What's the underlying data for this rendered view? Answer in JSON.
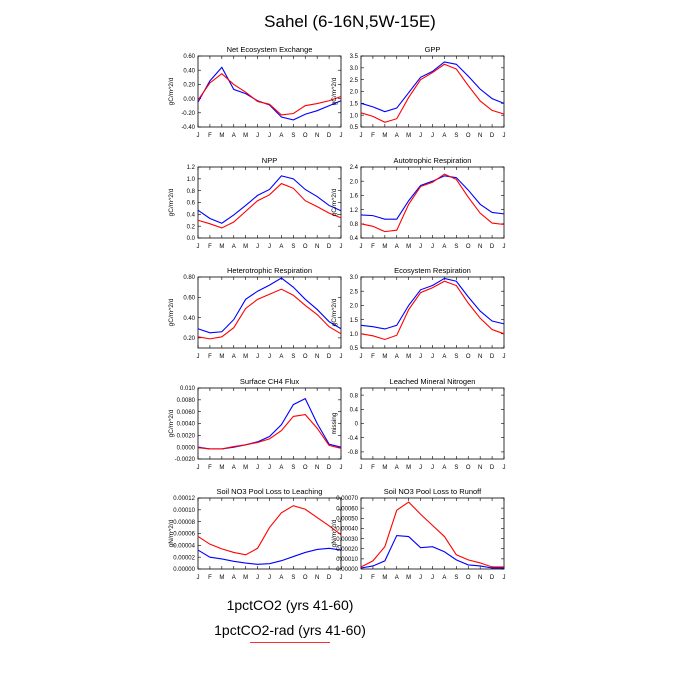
{
  "title": "Sahel (6-16N,5W-15E)",
  "colors": {
    "series1": "#0000ff",
    "series2": "#ff0000"
  },
  "legend": {
    "entries": [
      "1pctCO2 (yrs 41-60)",
      "1pctCO2-rad (yrs 41-60)"
    ]
  },
  "chart_data": [
    {
      "type": "line",
      "title": "Net Ecosystem Exchange",
      "ylabel": "gC/m^2/d",
      "categories": [
        "J",
        "F",
        "M",
        "A",
        "M",
        "J",
        "J",
        "A",
        "S",
        "O",
        "N",
        "D",
        "J"
      ],
      "ylim": [
        -0.4,
        0.6
      ],
      "yticks": [
        -0.4,
        -0.2,
        0.0,
        0.2,
        0.4,
        0.6
      ],
      "ytick_labels": [
        "-0.40",
        "-0.20",
        "0.00",
        "0.20",
        "0.40",
        "0.60"
      ],
      "series": [
        {
          "values": [
            -0.05,
            0.25,
            0.44,
            0.13,
            0.07,
            -0.03,
            -0.09,
            -0.26,
            -0.3,
            -0.22,
            -0.17,
            -0.1,
            -0.03
          ]
        },
        {
          "values": [
            -0.02,
            0.22,
            0.35,
            0.2,
            0.09,
            -0.04,
            -0.08,
            -0.23,
            -0.21,
            -0.1,
            -0.07,
            -0.03,
            0.03
          ]
        }
      ]
    },
    {
      "type": "line",
      "title": "GPP",
      "ylabel": "gC/m^2/d",
      "categories": [
        "J",
        "F",
        "M",
        "A",
        "M",
        "J",
        "J",
        "A",
        "S",
        "O",
        "N",
        "D",
        "J"
      ],
      "ylim": [
        0.5,
        3.5
      ],
      "yticks": [
        0.5,
        1.0,
        1.5,
        2.0,
        2.5,
        3.0,
        3.5
      ],
      "ytick_labels": [
        "0.5",
        "1.0",
        "1.5",
        "2.0",
        "2.5",
        "3.0",
        "3.5"
      ],
      "series": [
        {
          "values": [
            1.5,
            1.35,
            1.15,
            1.3,
            1.95,
            2.6,
            2.85,
            3.25,
            3.15,
            2.65,
            2.1,
            1.7,
            1.5
          ]
        },
        {
          "values": [
            1.1,
            0.95,
            0.7,
            0.85,
            1.75,
            2.5,
            2.8,
            3.15,
            2.95,
            2.25,
            1.6,
            1.2,
            1.05
          ]
        }
      ]
    },
    {
      "type": "line",
      "title": "NPP",
      "ylabel": "gC/m^2/d",
      "categories": [
        "J",
        "F",
        "M",
        "A",
        "M",
        "J",
        "J",
        "A",
        "S",
        "O",
        "N",
        "D",
        "J"
      ],
      "ylim": [
        0.0,
        1.2
      ],
      "yticks": [
        0.0,
        0.2,
        0.4,
        0.6,
        0.8,
        1.0,
        1.2
      ],
      "ytick_labels": [
        "0.0",
        "0.2",
        "0.4",
        "0.6",
        "0.8",
        "1.0",
        "1.2"
      ],
      "series": [
        {
          "values": [
            0.47,
            0.33,
            0.25,
            0.39,
            0.55,
            0.72,
            0.82,
            1.05,
            1.0,
            0.82,
            0.7,
            0.55,
            0.46
          ]
        },
        {
          "values": [
            0.3,
            0.24,
            0.17,
            0.27,
            0.45,
            0.63,
            0.73,
            0.92,
            0.84,
            0.63,
            0.53,
            0.42,
            0.34
          ]
        }
      ]
    },
    {
      "type": "line",
      "title": "Autotrophic Respiration",
      "ylabel": "gC/m^2/d",
      "categories": [
        "J",
        "F",
        "M",
        "A",
        "M",
        "J",
        "J",
        "A",
        "S",
        "O",
        "N",
        "D",
        "J"
      ],
      "ylim": [
        0.4,
        2.4
      ],
      "yticks": [
        0.4,
        0.8,
        1.2,
        1.6,
        2.0,
        2.4
      ],
      "ytick_labels": [
        "0.4",
        "0.8",
        "1.2",
        "1.6",
        "2.0",
        "2.4"
      ],
      "series": [
        {
          "values": [
            1.05,
            1.03,
            0.93,
            0.93,
            1.45,
            1.88,
            2.0,
            2.15,
            2.1,
            1.75,
            1.35,
            1.12,
            1.08
          ]
        },
        {
          "values": [
            0.8,
            0.73,
            0.58,
            0.62,
            1.35,
            1.85,
            1.97,
            2.2,
            2.05,
            1.55,
            1.1,
            0.82,
            0.78
          ]
        }
      ]
    },
    {
      "type": "line",
      "title": "Heterotrophic Respiration",
      "ylabel": "gC/m^2/d",
      "categories": [
        "J",
        "F",
        "M",
        "A",
        "M",
        "J",
        "J",
        "A",
        "S",
        "O",
        "N",
        "D",
        "J"
      ],
      "ylim": [
        0.1,
        0.8
      ],
      "yticks": [
        0.2,
        0.4,
        0.6,
        0.8
      ],
      "ytick_labels": [
        "0.20",
        "0.40",
        "0.60",
        "0.80"
      ],
      "series": [
        {
          "values": [
            0.29,
            0.25,
            0.26,
            0.38,
            0.58,
            0.66,
            0.72,
            0.79,
            0.7,
            0.58,
            0.48,
            0.36,
            0.29
          ]
        },
        {
          "values": [
            0.21,
            0.19,
            0.21,
            0.3,
            0.49,
            0.58,
            0.63,
            0.68,
            0.62,
            0.52,
            0.43,
            0.31,
            0.24
          ]
        }
      ]
    },
    {
      "type": "line",
      "title": "Ecosystem Respiration",
      "ylabel": "gC/m^2/d",
      "categories": [
        "J",
        "F",
        "M",
        "A",
        "M",
        "J",
        "J",
        "A",
        "S",
        "O",
        "N",
        "D",
        "J"
      ],
      "ylim": [
        0.5,
        3.0
      ],
      "yticks": [
        0.5,
        1.0,
        1.5,
        2.0,
        2.5,
        3.0
      ],
      "ytick_labels": [
        "0.5",
        "1.0",
        "1.5",
        "2.0",
        "2.5",
        "3.0"
      ],
      "series": [
        {
          "values": [
            1.3,
            1.25,
            1.17,
            1.3,
            2.0,
            2.55,
            2.7,
            2.95,
            2.85,
            2.3,
            1.8,
            1.45,
            1.35
          ]
        },
        {
          "values": [
            1.0,
            0.93,
            0.8,
            0.95,
            1.85,
            2.45,
            2.62,
            2.85,
            2.7,
            2.08,
            1.55,
            1.15,
            1.0
          ]
        }
      ]
    },
    {
      "type": "line",
      "title": "Surface CH4 Flux",
      "ylabel": "gC/m^2/d",
      "categories": [
        "J",
        "F",
        "M",
        "A",
        "M",
        "J",
        "J",
        "A",
        "S",
        "O",
        "N",
        "D",
        "J"
      ],
      "ylim": [
        -0.002,
        0.01
      ],
      "yticks": [
        -0.002,
        0.0,
        0.002,
        0.004,
        0.006,
        0.008,
        0.01
      ],
      "ytick_labels": [
        "-0.0020",
        "0.0000",
        "0.0020",
        "0.0040",
        "0.0060",
        "0.0080",
        "0.010"
      ],
      "series": [
        {
          "values": [
            0.0,
            -0.0003,
            -0.0003,
            0.0,
            0.0004,
            0.0009,
            0.0018,
            0.0038,
            0.0072,
            0.0082,
            0.004,
            0.0005,
            0.0
          ]
        },
        {
          "values": [
            -0.0001,
            -0.0003,
            -0.0003,
            0.0001,
            0.0004,
            0.0008,
            0.0014,
            0.0028,
            0.0052,
            0.0055,
            0.0032,
            0.0003,
            -0.0002
          ]
        }
      ]
    },
    {
      "type": "line",
      "title": "Leached Mineral Nitrogen",
      "ylabel": "missing",
      "categories": [
        "J",
        "F",
        "M",
        "A",
        "M",
        "J",
        "J",
        "A",
        "S",
        "O",
        "N",
        "D",
        "J"
      ],
      "ylim": [
        -1.0,
        1.0
      ],
      "yticks": [
        -0.8,
        -0.4,
        0.0,
        0.4,
        0.8
      ],
      "ytick_labels": [
        "-0.8",
        "-0.4",
        "0",
        "0.4",
        "0.8"
      ],
      "series": []
    },
    {
      "type": "line",
      "title": "Soil NO3 Pool Loss to Leaching",
      "ylabel": "gN/m^2/d",
      "categories": [
        "J",
        "F",
        "M",
        "A",
        "M",
        "J",
        "J",
        "A",
        "S",
        "O",
        "N",
        "D",
        "J"
      ],
      "ylim": [
        0.0,
        0.00012
      ],
      "yticks": [
        0.0,
        2e-05,
        4e-05,
        6e-05,
        8e-05,
        0.0001,
        0.00012
      ],
      "ytick_labels": [
        "0.00000",
        "0.00002",
        "0.00004",
        "0.00006",
        "0.00008",
        "0.00010",
        "0.00012"
      ],
      "series": [
        {
          "values": [
            3.2e-05,
            2e-05,
            1.7e-05,
            1.3e-05,
            1e-05,
            8e-06,
            9e-06,
            1.4e-05,
            2.1e-05,
            2.8e-05,
            3.3e-05,
            3.5e-05,
            3.2e-05
          ]
        },
        {
          "values": [
            5.5e-05,
            4.2e-05,
            3.4e-05,
            2.8e-05,
            2.4e-05,
            3.5e-05,
            7e-05,
            9.5e-05,
            0.000107,
            0.000101,
            8.7e-05,
            7.3e-05,
            5.8e-05
          ]
        }
      ]
    },
    {
      "type": "line",
      "title": "Soil NO3 Pool Loss to Runoff",
      "ylabel": "gN/m^2/d",
      "categories": [
        "J",
        "F",
        "M",
        "A",
        "M",
        "J",
        "J",
        "A",
        "S",
        "O",
        "N",
        "D",
        "J"
      ],
      "ylim": [
        0.0,
        0.0007
      ],
      "yticks": [
        0.0,
        0.0001,
        0.0002,
        0.0003,
        0.0004,
        0.0005,
        0.0006,
        0.0007
      ],
      "ytick_labels": [
        "0.00000",
        "0.00010",
        "0.00020",
        "0.00030",
        "0.00040",
        "0.00050",
        "0.00060",
        "0.00070"
      ],
      "series": [
        {
          "values": [
            1e-05,
            3e-05,
            8e-05,
            0.00033,
            0.00032,
            0.00021,
            0.00022,
            0.00017,
            9e-05,
            4e-05,
            3e-05,
            1e-05,
            1e-05
          ]
        },
        {
          "values": [
            2e-05,
            8e-05,
            0.00022,
            0.00058,
            0.00066,
            0.00054,
            0.00043,
            0.00032,
            0.00014,
            9e-05,
            6e-05,
            2e-05,
            2e-05
          ]
        }
      ]
    }
  ]
}
